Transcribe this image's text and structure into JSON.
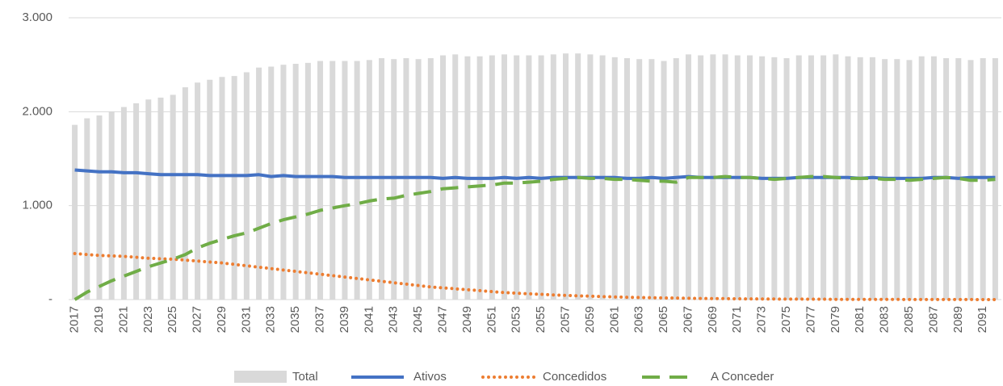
{
  "chart_data": {
    "type": "combo",
    "categories": [
      2017,
      null,
      2019,
      null,
      2021,
      null,
      2023,
      null,
      2025,
      null,
      2027,
      null,
      2029,
      null,
      2031,
      null,
      2033,
      null,
      2035,
      null,
      2037,
      null,
      2039,
      null,
      2041,
      null,
      2043,
      null,
      2045,
      null,
      2047,
      null,
      2049,
      null,
      2051,
      null,
      2053,
      null,
      2055,
      null,
      2057,
      null,
      2059,
      null,
      2061,
      null,
      2063,
      null,
      2065,
      null,
      2067,
      null,
      2069,
      null,
      2071,
      null,
      2073,
      null,
      2075,
      null,
      2077,
      null,
      2079,
      null,
      2081,
      null,
      2083,
      null,
      2085,
      null,
      2087,
      null,
      2089,
      null,
      2091,
      null
    ],
    "series": [
      {
        "name": "Total",
        "type": "bar",
        "color": "#d9d9d9",
        "values": [
          1860,
          1930,
          1960,
          2000,
          2050,
          2090,
          2130,
          2150,
          2180,
          2260,
          2310,
          2340,
          2370,
          2380,
          2420,
          2470,
          2480,
          2500,
          2510,
          2520,
          2540,
          2540,
          2540,
          2540,
          2550,
          2570,
          2560,
          2570,
          2560,
          2570,
          2600,
          2610,
          2590,
          2590,
          2600,
          2610,
          2600,
          2600,
          2600,
          2610,
          2620,
          2620,
          2610,
          2600,
          2580,
          2570,
          2560,
          2560,
          2540,
          2570,
          2610,
          2600,
          2610,
          2610,
          2600,
          2600,
          2590,
          2580,
          2570,
          2600,
          2600,
          2600,
          2610,
          2590,
          2580,
          2580,
          2560,
          2560,
          2550,
          2590,
          2590,
          2570,
          2570,
          2550,
          2570,
          2570
        ]
      },
      {
        "name": "Ativos",
        "type": "line",
        "style": "solid",
        "color": "#4472c4",
        "values": [
          1380,
          1370,
          1360,
          1360,
          1350,
          1350,
          1340,
          1330,
          1330,
          1330,
          1330,
          1320,
          1320,
          1320,
          1320,
          1330,
          1310,
          1320,
          1310,
          1310,
          1310,
          1310,
          1300,
          1300,
          1300,
          1300,
          1300,
          1300,
          1300,
          1300,
          1290,
          1300,
          1290,
          1290,
          1290,
          1300,
          1290,
          1300,
          1290,
          1300,
          1300,
          1300,
          1300,
          1300,
          1300,
          1290,
          1290,
          1300,
          1290,
          1300,
          1310,
          1300,
          1300,
          1300,
          1300,
          1300,
          1290,
          1290,
          1290,
          1300,
          1300,
          1300,
          1300,
          1300,
          1290,
          1300,
          1290,
          1290,
          1290,
          1290,
          1300,
          1300,
          1290,
          1300,
          1300,
          1300
        ]
      },
      {
        "name": "Concedidos",
        "type": "line",
        "style": "dotted",
        "color": "#ed7d31",
        "values": [
          490,
          480,
          470,
          465,
          460,
          450,
          440,
          435,
          430,
          420,
          410,
          400,
          390,
          375,
          360,
          345,
          330,
          315,
          300,
          285,
          270,
          255,
          240,
          225,
          210,
          195,
          180,
          165,
          150,
          135,
          125,
          115,
          105,
          95,
          85,
          75,
          68,
          62,
          56,
          50,
          45,
          40,
          36,
          32,
          28,
          25,
          22,
          20,
          18,
          16,
          14,
          12,
          11,
          10,
          9,
          8,
          7,
          6,
          5,
          5,
          4,
          4,
          3,
          3,
          3,
          2,
          2,
          2,
          1,
          1,
          1,
          1,
          1,
          1,
          0,
          0
        ]
      },
      {
        "name": "A Conceder",
        "type": "line",
        "style": "dashed",
        "color": "#70ad47",
        "values": [
          0,
          80,
          140,
          200,
          250,
          300,
          350,
          390,
          430,
          480,
          550,
          600,
          640,
          680,
          710,
          760,
          810,
          850,
          880,
          910,
          950,
          975,
          1000,
          1020,
          1050,
          1070,
          1080,
          1110,
          1130,
          1150,
          1180,
          1190,
          1200,
          1210,
          1220,
          1240,
          1240,
          1250,
          1260,
          1280,
          1290,
          1300,
          1290,
          1290,
          1280,
          1280,
          1270,
          1260,
          1260,
          1250,
          1300,
          1300,
          1300,
          1310,
          1300,
          1300,
          1290,
          1280,
          1290,
          1300,
          1310,
          1310,
          1300,
          1290,
          1290,
          1290,
          1280,
          1280,
          1270,
          1280,
          1290,
          1300,
          1290,
          1270,
          1270,
          1280
        ]
      }
    ],
    "ylim": [
      0,
      3000
    ],
    "yticks": [
      {
        "value": 0,
        "label": "-"
      },
      {
        "value": 1000,
        "label": "1.000"
      },
      {
        "value": 2000,
        "label": "2.000"
      },
      {
        "value": 3000,
        "label": "3.000"
      }
    ],
    "grid": true,
    "legend": "bottom"
  }
}
